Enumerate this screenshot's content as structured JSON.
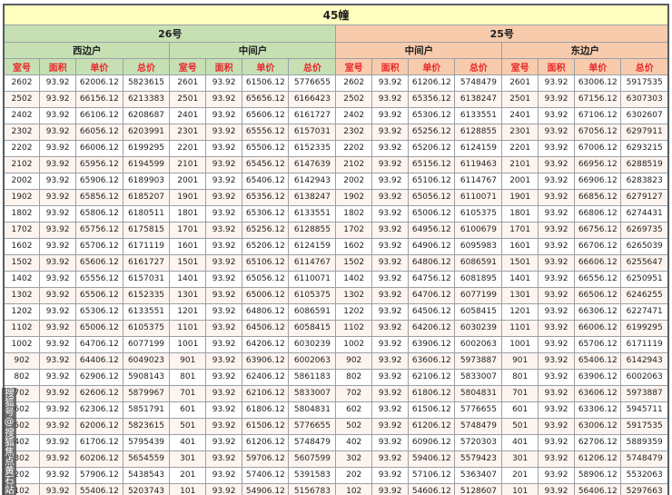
{
  "title_bar": "45幢",
  "watermark": {
    "text": "搜狐号@搜狐焦点黄石站"
  },
  "colors": {
    "green": "#c6e0b4",
    "peach": "#f8cbad",
    "yellow": "#ffffc0",
    "redtext": "#e8262a",
    "border": "#9aa0a6"
  },
  "table": {
    "title": "45幢",
    "buildings": [
      {
        "label": "26号"
      },
      {
        "label": "25号"
      }
    ],
    "units": [
      {
        "label": "西边户",
        "building": 0
      },
      {
        "label": "中间户",
        "building": 0
      },
      {
        "label": "中间户",
        "building": 1
      },
      {
        "label": "东边户",
        "building": 1
      }
    ],
    "columns": [
      "室号",
      "面积",
      "单价",
      "总价"
    ],
    "rows": [
      [
        "2602",
        "93.92",
        "62006.12",
        "5823615",
        "2601",
        "93.92",
        "61506.12",
        "5776655",
        "2602",
        "93.92",
        "61206.12",
        "5748479",
        "2601",
        "93.92",
        "63006.12",
        "5917535"
      ],
      [
        "2502",
        "93.92",
        "66156.12",
        "6213383",
        "2501",
        "93.92",
        "65656.12",
        "6166423",
        "2502",
        "93.92",
        "65356.12",
        "6138247",
        "2501",
        "93.92",
        "67156.12",
        "6307303"
      ],
      [
        "2402",
        "93.92",
        "66106.12",
        "6208687",
        "2401",
        "93.92",
        "65606.12",
        "6161727",
        "2402",
        "93.92",
        "65306.12",
        "6133551",
        "2401",
        "93.92",
        "67106.12",
        "6302607"
      ],
      [
        "2302",
        "93.92",
        "66056.12",
        "6203991",
        "2301",
        "93.92",
        "65556.12",
        "6157031",
        "2302",
        "93.92",
        "65256.12",
        "6128855",
        "2301",
        "93.92",
        "67056.12",
        "6297911"
      ],
      [
        "2202",
        "93.92",
        "66006.12",
        "6199295",
        "2201",
        "93.92",
        "65506.12",
        "6152335",
        "2202",
        "93.92",
        "65206.12",
        "6124159",
        "2201",
        "93.92",
        "67006.12",
        "6293215"
      ],
      [
        "2102",
        "93.92",
        "65956.12",
        "6194599",
        "2101",
        "93.92",
        "65456.12",
        "6147639",
        "2102",
        "93.92",
        "65156.12",
        "6119463",
        "2101",
        "93.92",
        "66956.12",
        "6288519"
      ],
      [
        "2002",
        "93.92",
        "65906.12",
        "6189903",
        "2001",
        "93.92",
        "65406.12",
        "6142943",
        "2002",
        "93.92",
        "65106.12",
        "6114767",
        "2001",
        "93.92",
        "66906.12",
        "6283823"
      ],
      [
        "1902",
        "93.92",
        "65856.12",
        "6185207",
        "1901",
        "93.92",
        "65356.12",
        "6138247",
        "1902",
        "93.92",
        "65056.12",
        "6110071",
        "1901",
        "93.92",
        "66856.12",
        "6279127"
      ],
      [
        "1802",
        "93.92",
        "65806.12",
        "6180511",
        "1801",
        "93.92",
        "65306.12",
        "6133551",
        "1802",
        "93.92",
        "65006.12",
        "6105375",
        "1801",
        "93.92",
        "66806.12",
        "6274431"
      ],
      [
        "1702",
        "93.92",
        "65756.12",
        "6175815",
        "1701",
        "93.92",
        "65256.12",
        "6128855",
        "1702",
        "93.92",
        "64956.12",
        "6100679",
        "1701",
        "93.92",
        "66756.12",
        "6269735"
      ],
      [
        "1602",
        "93.92",
        "65706.12",
        "6171119",
        "1601",
        "93.92",
        "65206.12",
        "6124159",
        "1602",
        "93.92",
        "64906.12",
        "6095983",
        "1601",
        "93.92",
        "66706.12",
        "6265039"
      ],
      [
        "1502",
        "93.92",
        "65606.12",
        "6161727",
        "1501",
        "93.92",
        "65106.12",
        "6114767",
        "1502",
        "93.92",
        "64806.12",
        "6086591",
        "1501",
        "93.92",
        "66606.12",
        "6255647"
      ],
      [
        "1402",
        "93.92",
        "65556.12",
        "6157031",
        "1401",
        "93.92",
        "65056.12",
        "6110071",
        "1402",
        "93.92",
        "64756.12",
        "6081895",
        "1401",
        "93.92",
        "66556.12",
        "6250951"
      ],
      [
        "1302",
        "93.92",
        "65506.12",
        "6152335",
        "1301",
        "93.92",
        "65006.12",
        "6105375",
        "1302",
        "93.92",
        "64706.12",
        "6077199",
        "1301",
        "93.92",
        "66506.12",
        "6246255"
      ],
      [
        "1202",
        "93.92",
        "65306.12",
        "6133551",
        "1201",
        "93.92",
        "64806.12",
        "6086591",
        "1202",
        "93.92",
        "64506.12",
        "6058415",
        "1201",
        "93.92",
        "66306.12",
        "6227471"
      ],
      [
        "1102",
        "93.92",
        "65006.12",
        "6105375",
        "1101",
        "93.92",
        "64506.12",
        "6058415",
        "1102",
        "93.92",
        "64206.12",
        "6030239",
        "1101",
        "93.92",
        "66006.12",
        "6199295"
      ],
      [
        "1002",
        "93.92",
        "64706.12",
        "6077199",
        "1001",
        "93.92",
        "64206.12",
        "6030239",
        "1002",
        "93.92",
        "63906.12",
        "6002063",
        "1001",
        "93.92",
        "65706.12",
        "6171119"
      ],
      [
        "902",
        "93.92",
        "64406.12",
        "6049023",
        "901",
        "93.92",
        "63906.12",
        "6002063",
        "902",
        "93.92",
        "63606.12",
        "5973887",
        "901",
        "93.92",
        "65406.12",
        "6142943"
      ],
      [
        "802",
        "93.92",
        "62906.12",
        "5908143",
        "801",
        "93.92",
        "62406.12",
        "5861183",
        "802",
        "93.92",
        "62106.12",
        "5833007",
        "801",
        "93.92",
        "63906.12",
        "6002063"
      ],
      [
        "702",
        "93.92",
        "62606.12",
        "5879967",
        "701",
        "93.92",
        "62106.12",
        "5833007",
        "702",
        "93.92",
        "61806.12",
        "5804831",
        "701",
        "93.92",
        "63606.12",
        "5973887"
      ],
      [
        "602",
        "93.92",
        "62306.12",
        "5851791",
        "601",
        "93.92",
        "61806.12",
        "5804831",
        "602",
        "93.92",
        "61506.12",
        "5776655",
        "601",
        "93.92",
        "63306.12",
        "5945711"
      ],
      [
        "502",
        "93.92",
        "62006.12",
        "5823615",
        "501",
        "93.92",
        "61506.12",
        "5776655",
        "502",
        "93.92",
        "61206.12",
        "5748479",
        "501",
        "93.92",
        "63006.12",
        "5917535"
      ],
      [
        "402",
        "93.92",
        "61706.12",
        "5795439",
        "401",
        "93.92",
        "61206.12",
        "5748479",
        "402",
        "93.92",
        "60906.12",
        "5720303",
        "401",
        "93.92",
        "62706.12",
        "5889359"
      ],
      [
        "302",
        "93.92",
        "60206.12",
        "5654559",
        "301",
        "93.92",
        "59706.12",
        "5607599",
        "302",
        "93.92",
        "59406.12",
        "5579423",
        "301",
        "93.92",
        "61206.12",
        "5748479"
      ],
      [
        "202",
        "93.92",
        "57906.12",
        "5438543",
        "201",
        "93.92",
        "57406.12",
        "5391583",
        "202",
        "93.92",
        "57106.12",
        "5363407",
        "201",
        "93.92",
        "58906.12",
        "5532063"
      ],
      [
        "102",
        "93.92",
        "55406.12",
        "5203743",
        "101",
        "93.92",
        "54906.12",
        "5156783",
        "102",
        "93.92",
        "54606.12",
        "5128607",
        "101",
        "93.92",
        "56406.12",
        "5297663"
      ]
    ]
  }
}
